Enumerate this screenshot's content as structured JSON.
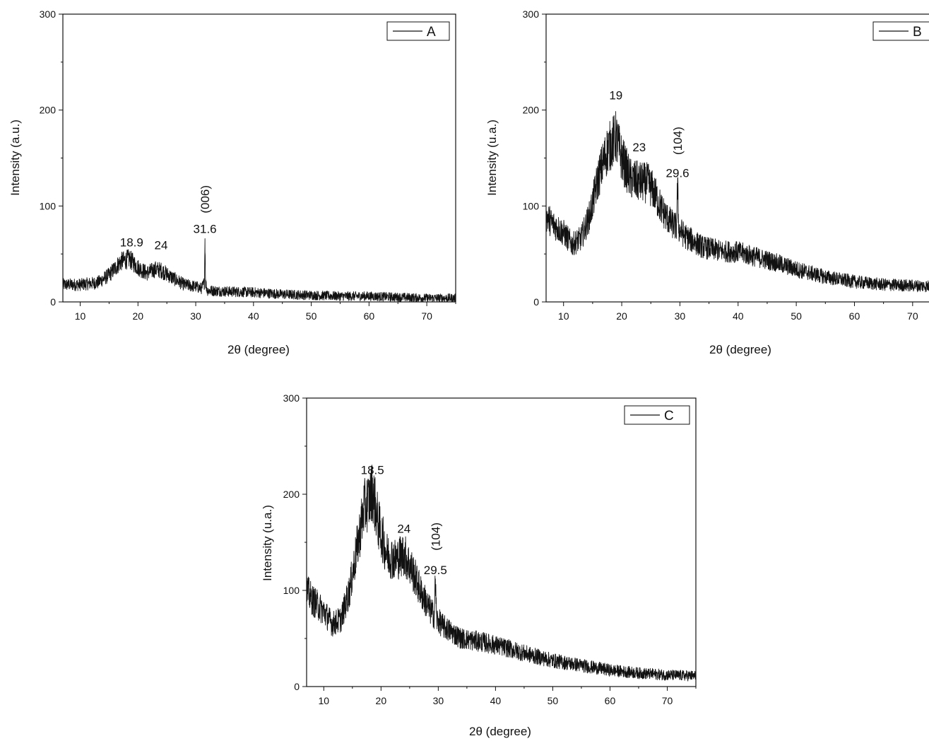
{
  "chart_data": [
    {
      "type": "line",
      "xlabel": "2θ (degree)",
      "ylabel": "Intensity  (a.u.)",
      "xlim": [
        7,
        75
      ],
      "ylim": [
        0,
        300
      ],
      "xticks": [
        10,
        20,
        30,
        40,
        50,
        60,
        70
      ],
      "yticks": [
        0,
        100,
        200,
        300
      ],
      "legend": {
        "position": "top-right",
        "entries": [
          "A"
        ]
      },
      "series": [
        {
          "name": "A",
          "color": "#111111",
          "x": [
            7,
            10,
            13,
            15,
            17,
            18.5,
            20,
            21.5,
            23,
            24,
            26,
            28,
            30,
            31,
            31.5,
            31.6,
            31.7,
            32,
            35,
            40,
            45,
            50,
            55,
            60,
            65,
            70,
            75
          ],
          "y": [
            18,
            18,
            20,
            28,
            42,
            45,
            36,
            30,
            34,
            33,
            25,
            18,
            16,
            14,
            20,
            66,
            20,
            12,
            11,
            10,
            8,
            7,
            6,
            6,
            5,
            4,
            4
          ]
        }
      ],
      "annotations": [
        {
          "text": "18.9",
          "x": 18.9,
          "y": 58
        },
        {
          "text": "24",
          "x": 24,
          "y": 55
        },
        {
          "text": "31.6",
          "x": 31.6,
          "y": 72
        },
        {
          "text": "(006)",
          "x": 31.6,
          "y": 107,
          "rotated": true
        }
      ]
    },
    {
      "type": "line",
      "xlabel": "2θ (degree)",
      "ylabel": "Intensity (u.a.)",
      "xlim": [
        7,
        75
      ],
      "ylim": [
        0,
        300
      ],
      "xticks": [
        10,
        20,
        30,
        40,
        50,
        60,
        70
      ],
      "yticks": [
        0,
        100,
        200,
        300
      ],
      "legend": {
        "position": "top-right",
        "entries": [
          "B"
        ]
      },
      "series": [
        {
          "name": "B",
          "color": "#111111",
          "x": [
            7,
            8,
            10,
            11.5,
            13,
            14.5,
            16,
            17.5,
            19,
            20,
            21.5,
            23,
            24.5,
            25.5,
            27,
            28.5,
            29.4,
            29.6,
            29.8,
            31,
            34,
            37,
            40,
            43,
            46,
            50,
            55,
            60,
            65,
            70,
            75
          ],
          "y": [
            90,
            82,
            72,
            60,
            66,
            90,
            130,
            158,
            172,
            150,
            128,
            125,
            124,
            115,
            95,
            82,
            78,
            122,
            76,
            68,
            57,
            53,
            52,
            47,
            42,
            34,
            26,
            21,
            18,
            17,
            16
          ]
        }
      ],
      "annotations": [
        {
          "text": "19",
          "x": 19,
          "y": 211
        },
        {
          "text": "23",
          "x": 23,
          "y": 157
        },
        {
          "text": "29.6",
          "x": 29.6,
          "y": 130
        },
        {
          "text": "(104)",
          "x": 29.6,
          "y": 168,
          "rotated": true
        }
      ]
    },
    {
      "type": "line",
      "xlabel": "2θ (degree)",
      "ylabel": "Intensity (u.a.)",
      "xlim": [
        7,
        75
      ],
      "ylim": [
        0,
        300
      ],
      "xticks": [
        10,
        20,
        30,
        40,
        50,
        60,
        70
      ],
      "yticks": [
        0,
        100,
        200,
        300
      ],
      "legend": {
        "position": "top-right",
        "entries": [
          "C"
        ]
      },
      "series": [
        {
          "name": "C",
          "color": "#111111",
          "x": [
            7,
            8,
            10,
            11.5,
            13,
            14.5,
            16,
            17,
            18,
            18.5,
            19.5,
            21,
            22.5,
            24,
            25.5,
            27,
            28.5,
            29.3,
            29.5,
            29.7,
            31,
            34,
            38,
            42,
            46,
            50,
            55,
            60,
            65,
            70,
            75
          ],
          "y": [
            100,
            90,
            78,
            65,
            70,
            100,
            150,
            185,
            195,
            205,
            170,
            138,
            132,
            138,
            120,
            98,
            80,
            74,
            112,
            70,
            62,
            50,
            46,
            40,
            33,
            27,
            22,
            17,
            14,
            12,
            11
          ]
        }
      ],
      "annotations": [
        {
          "text": "18.5",
          "x": 18.5,
          "y": 221
        },
        {
          "text": "24",
          "x": 24,
          "y": 160
        },
        {
          "text": "29.5",
          "x": 29.5,
          "y": 117
        },
        {
          "text": "(104)",
          "x": 29.5,
          "y": 156,
          "rotated": true
        }
      ]
    }
  ]
}
